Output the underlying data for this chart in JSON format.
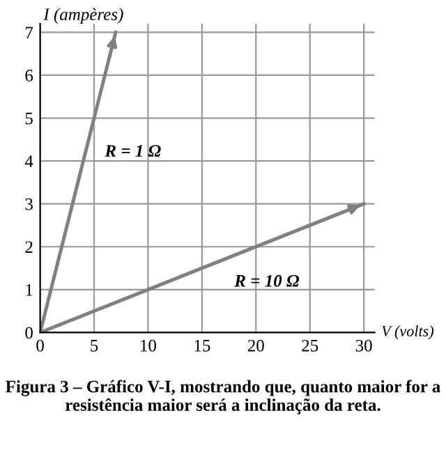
{
  "chart_data": {
    "type": "line",
    "xlabel": "V (volts)",
    "ylabel": "I (ampères)",
    "series": [
      {
        "name": "R = 1 Ω",
        "color": "#808080",
        "x": [
          0,
          7
        ],
        "values": [
          0,
          7
        ]
      },
      {
        "name": "R = 10 Ω",
        "color": "#808080",
        "x": [
          0,
          30
        ],
        "values": [
          0,
          3
        ]
      }
    ],
    "xlim": [
      0,
      31
    ],
    "ylim": [
      0,
      7.2
    ],
    "xticks": [
      0,
      5,
      10,
      15,
      20,
      25,
      30
    ],
    "yticks": [
      0,
      1,
      2,
      3,
      4,
      5,
      6,
      7
    ],
    "grid": true,
    "marker": "none",
    "line_style": "solid",
    "annotations": [
      "Figura 3 – Gráfico V-I, mostrando que, quanto maior for a resistência maior será a inclinação da reta."
    ]
  }
}
